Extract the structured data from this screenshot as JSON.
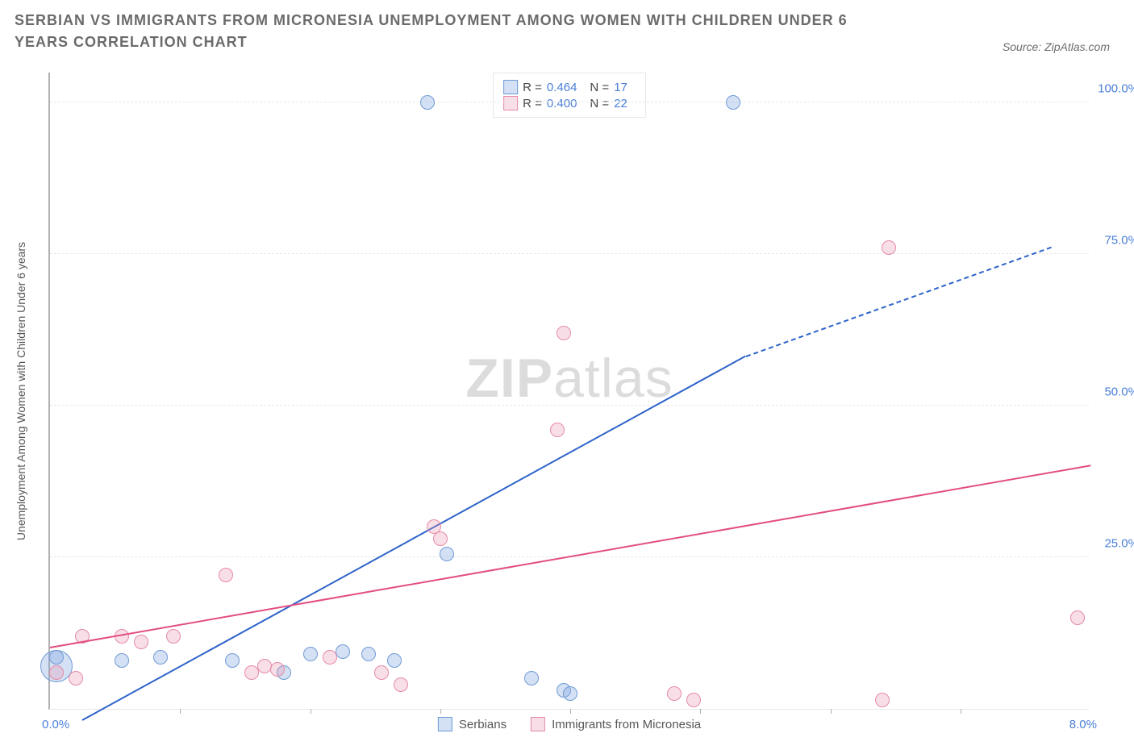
{
  "title": "SERBIAN VS IMMIGRANTS FROM MICRONESIA UNEMPLOYMENT AMONG WOMEN WITH CHILDREN UNDER 6 YEARS CORRELATION CHART",
  "source_label": "Source: ZipAtlas.com",
  "watermark_bold": "ZIP",
  "watermark_light": "atlas",
  "y_axis_label": "Unemployment Among Women with Children Under 6 years",
  "axis": {
    "x_min": 0.0,
    "x_max": 8.0,
    "y_min": 0.0,
    "y_max": 105.0,
    "x_min_label": "0.0%",
    "x_max_label": "8.0%",
    "x_tick_values": [
      1,
      2,
      3,
      4,
      5,
      6,
      7
    ],
    "y_ticks": [
      {
        "v": 25.0,
        "label": "25.0%"
      },
      {
        "v": 50.0,
        "label": "50.0%"
      },
      {
        "v": 75.0,
        "label": "75.0%"
      },
      {
        "v": 100.0,
        "label": "100.0%"
      }
    ],
    "label_color": "#4a7fd8",
    "label_fontsize": 15
  },
  "series": [
    {
      "key": "serbians",
      "label": "Serbians",
      "fill": "rgba(132,170,224,0.35)",
      "stroke": "#6f9ad6",
      "line_color": "#2e63c9",
      "R": "0.464",
      "N": "17",
      "marker_radius": 9,
      "trend": {
        "x1": 0.25,
        "y1": -2.0,
        "x2": 5.35,
        "y2": 58.0,
        "dashed_to_x": 7.7,
        "dashed_to_y": 76.0
      },
      "points": [
        {
          "x": 0.05,
          "y": 7.0,
          "r": 20
        },
        {
          "x": 0.05,
          "y": 8.5
        },
        {
          "x": 0.55,
          "y": 8.0
        },
        {
          "x": 0.85,
          "y": 8.5
        },
        {
          "x": 1.4,
          "y": 8.0
        },
        {
          "x": 1.8,
          "y": 6.0
        },
        {
          "x": 2.0,
          "y": 9.0
        },
        {
          "x": 2.25,
          "y": 9.5
        },
        {
          "x": 2.45,
          "y": 9.0
        },
        {
          "x": 2.65,
          "y": 8.0
        },
        {
          "x": 3.05,
          "y": 25.5
        },
        {
          "x": 2.9,
          "y": 100.0
        },
        {
          "x": 3.7,
          "y": 5.0
        },
        {
          "x": 3.95,
          "y": 3.0
        },
        {
          "x": 4.0,
          "y": 2.5
        },
        {
          "x": 5.25,
          "y": 100.0
        }
      ]
    },
    {
      "key": "micronesia",
      "label": "Immigrants from Micronesia",
      "fill": "rgba(232,150,175,0.30)",
      "stroke": "#e58aa6",
      "line_color": "#e34d82",
      "R": "0.400",
      "N": "22",
      "marker_radius": 9,
      "trend": {
        "x1": 0.0,
        "y1": 10.0,
        "x2": 8.0,
        "y2": 40.0
      },
      "points": [
        {
          "x": 0.05,
          "y": 6.0
        },
        {
          "x": 0.2,
          "y": 5.0
        },
        {
          "x": 0.25,
          "y": 12.0
        },
        {
          "x": 0.55,
          "y": 12.0
        },
        {
          "x": 0.7,
          "y": 11.0
        },
        {
          "x": 0.95,
          "y": 12.0
        },
        {
          "x": 1.35,
          "y": 22.0
        },
        {
          "x": 1.55,
          "y": 6.0
        },
        {
          "x": 1.65,
          "y": 7.0
        },
        {
          "x": 1.75,
          "y": 6.5
        },
        {
          "x": 2.15,
          "y": 8.5
        },
        {
          "x": 2.55,
          "y": 6.0
        },
        {
          "x": 2.7,
          "y": 4.0
        },
        {
          "x": 2.95,
          "y": 30.0
        },
        {
          "x": 3.0,
          "y": 28.0
        },
        {
          "x": 3.9,
          "y": 46.0
        },
        {
          "x": 3.95,
          "y": 62.0
        },
        {
          "x": 4.8,
          "y": 2.5
        },
        {
          "x": 4.95,
          "y": 1.5
        },
        {
          "x": 6.45,
          "y": 76.0
        },
        {
          "x": 6.4,
          "y": 1.5
        },
        {
          "x": 7.9,
          "y": 15.0
        }
      ]
    }
  ],
  "legend_labels": {
    "R_prefix": "R =",
    "N_prefix": "N ="
  },
  "colors": {
    "title": "#6b6b6b",
    "grid": "#e8e8e8",
    "axis": "#b0b0b0",
    "background": "#ffffff"
  }
}
